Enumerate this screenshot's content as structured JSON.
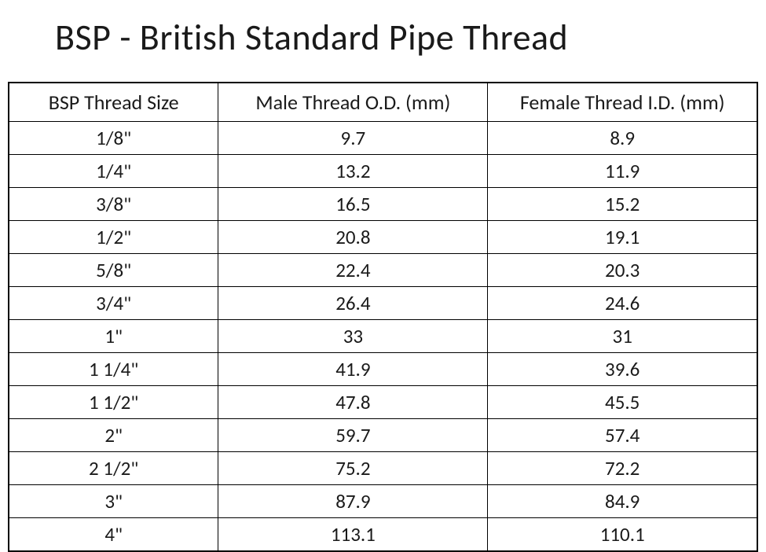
{
  "title": "BSP - British Standard Pipe Thread",
  "table": {
    "type": "table",
    "columns": [
      {
        "label": "BSP Thread Size",
        "width_pct": 28,
        "align": "center"
      },
      {
        "label": "Male Thread O.D. (mm)",
        "width_pct": 36,
        "align": "center"
      },
      {
        "label": "Female Thread I.D. (mm)",
        "width_pct": 36,
        "align": "center"
      }
    ],
    "rows": [
      [
        "1/8\"",
        "9.7",
        "8.9"
      ],
      [
        "1/4\"",
        "13.2",
        "11.9"
      ],
      [
        "3/8\"",
        "16.5",
        "15.2"
      ],
      [
        "1/2\"",
        "20.8",
        "19.1"
      ],
      [
        "5/8\"",
        "22.4",
        "20.3"
      ],
      [
        "3/4\"",
        "26.4",
        "24.6"
      ],
      [
        "1\"",
        "33",
        "31"
      ],
      [
        "1 1/4\"",
        "41.9",
        "39.6"
      ],
      [
        "1 1/2\"",
        "47.8",
        "45.5"
      ],
      [
        "2\"",
        "59.7",
        "57.4"
      ],
      [
        "2 1/2\"",
        "75.2",
        "72.2"
      ],
      [
        "3\"",
        "87.9",
        "84.9"
      ],
      [
        "4\"",
        "113.1",
        "110.1"
      ]
    ],
    "styling": {
      "border_color": "#000000",
      "outer_border_width": 2,
      "inner_border_width": 1,
      "background_color": "#ffffff",
      "text_color": "#1a1a1a",
      "header_fontsize": 26,
      "cell_fontsize": 25,
      "font_family": "Calibri",
      "title_fontsize": 46,
      "title_color": "#1a1a1a"
    }
  }
}
